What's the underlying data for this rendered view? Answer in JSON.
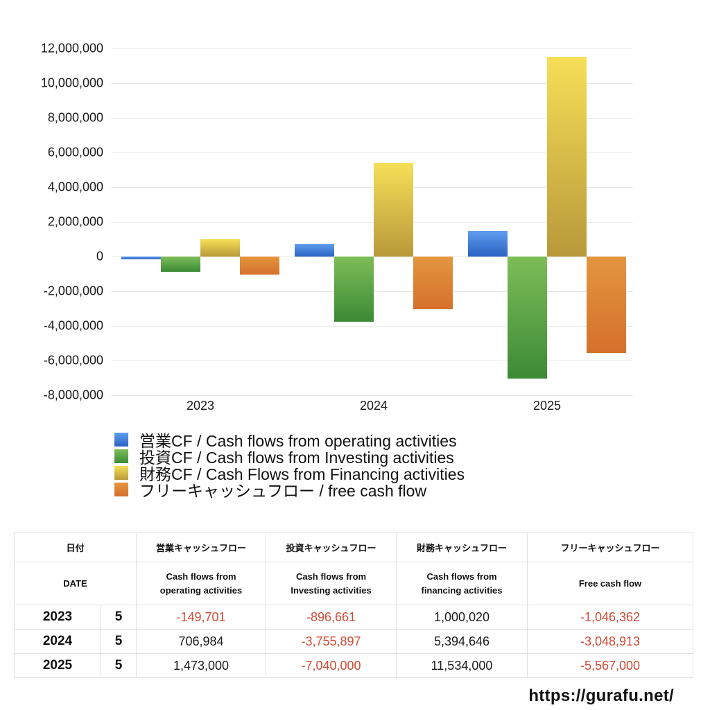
{
  "chart_data": {
    "type": "bar",
    "title": "",
    "xlabel": "",
    "ylabel": "",
    "categories": [
      "2023",
      "2024",
      "2025"
    ],
    "series": [
      {
        "name": "営業CF / Cash flows from operating activities",
        "color": "#3f7fdc",
        "values": [
          -149701,
          706984,
          1473000
        ]
      },
      {
        "name": "投資CF / Cash flows from Investing activities",
        "color": "#55a344",
        "values": [
          -896661,
          -3755897,
          -7040000
        ]
      },
      {
        "name": "財務CF / Cash Flows from Financing activities",
        "color": "#e0c44a",
        "values": [
          1000020,
          5394646,
          11534000
        ]
      },
      {
        "name": "フリーキャッシュフロー / free cash flow",
        "color": "#dc8135",
        "values": [
          -1046362,
          -3048913,
          -5567000
        ]
      }
    ],
    "ylim": [
      -8000000,
      12000000
    ],
    "yticks": [
      "12,000,000",
      "10,000,000",
      "8,000,000",
      "6,000,000",
      "4,000,000",
      "2,000,000",
      "0",
      "-2,000,000",
      "-4,000,000",
      "-6,000,000",
      "-8,000,000"
    ],
    "grid": true,
    "legend_position": "bottom"
  },
  "legend": {
    "items": [
      {
        "label": "営業CF / Cash flows from operating activities"
      },
      {
        "label": "投資CF / Cash flows from Investing activities"
      },
      {
        "label": "財務CF / Cash Flows from Financing activities"
      },
      {
        "label": "フリーキャッシュフロー / free cash flow"
      }
    ]
  },
  "table": {
    "headers_jp": [
      "日付",
      "営業キャッシュフロー",
      "投資キャッシュフロー",
      "財務キャッシュフロー",
      "フリーキャッシュフロー"
    ],
    "headers_en": [
      "DATE",
      "Cash flows from operating activities",
      "Cash flows from Investing activities",
      "Cash flows from financing activities",
      "Free cash flow"
    ],
    "rows": [
      {
        "year": "2023",
        "month": "5",
        "operating": "-149,701",
        "investing": "-896,661",
        "financing": "1,000,020",
        "free": "-1,046,362"
      },
      {
        "year": "2024",
        "month": "5",
        "operating": "706,984",
        "investing": "-3,755,897",
        "financing": "5,394,646",
        "free": "-3,048,913"
      },
      {
        "year": "2025",
        "month": "5",
        "operating": "1,473,000",
        "investing": "-7,040,000",
        "financing": "11,534,000",
        "free": "-5,567,000"
      }
    ]
  },
  "footer": {
    "url": "https://gurafu.net/"
  },
  "colors": {
    "negative_text": "#d04a35",
    "grid": "#e6e6e6"
  }
}
